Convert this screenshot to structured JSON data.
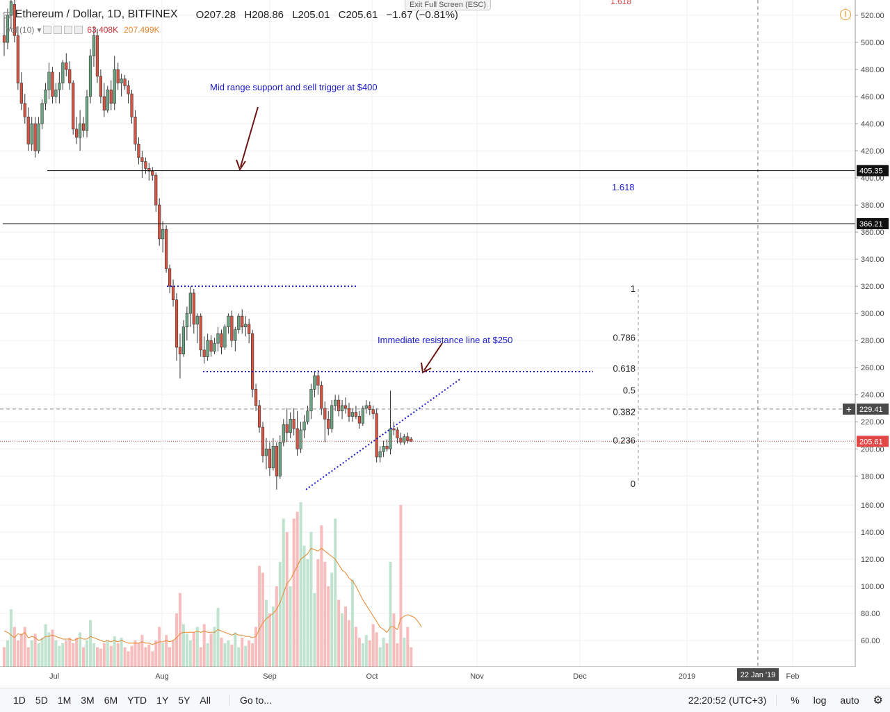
{
  "header": {
    "symbol": "Ethereum / Dollar, 1D, BITFINEX",
    "open": "O207.28",
    "high": "H208.86",
    "low": "L205.01",
    "close": "C205.61",
    "change": "−1.67 (−0.81%)",
    "exit_label": "Exit Full Screen (ESC)",
    "warning": "!"
  },
  "volume_legend": {
    "label": "Vol (10)",
    "value": "63.408K",
    "ma_value": "207.499K"
  },
  "colors": {
    "up": "#6ba583",
    "down": "#d75442",
    "up_vol": "#bfe3cf",
    "down_vol": "#f7bcbc",
    "annotation": "#1a1acc",
    "arrow": "#6b1414",
    "ma": "#e6872e",
    "last_price": "#e04848",
    "hline": "#111111"
  },
  "annotations": {
    "support_note": "Mid range support and sell trigger at $400",
    "resistance_note": "Immediate resistance line at $250",
    "fib_1618": "1.618",
    "fib_top": "1.618"
  },
  "price_badges": {
    "upper_line": "405.35",
    "middle_line": "366.21",
    "crosshair": "229.41",
    "last": "205.61"
  },
  "footer": {
    "timeframes": [
      "1D",
      "5D",
      "1M",
      "3M",
      "6M",
      "YTD",
      "1Y",
      "5Y",
      "All"
    ],
    "goto": "Go to...",
    "clock": "22:20:52 (UTC+3)",
    "percent": "%",
    "log": "log",
    "auto": "auto",
    "settings_icon": "gear-icon"
  },
  "chart_data": {
    "type": "candlestick",
    "title": "Ethereum / Dollar, 1D, BITFINEX",
    "x_ticks": [
      "Jul",
      "Aug",
      "Sep",
      "Oct",
      "Nov",
      "Dec",
      "2019",
      "22 Jan '19",
      "Feb"
    ],
    "y_ticks": [
      "520.00",
      "500.00",
      "480.00",
      "460.00",
      "440.00",
      "420.00",
      "400.00",
      "380.00",
      "360.00",
      "340.00",
      "320.00",
      "300.00",
      "280.00",
      "260.00",
      "240.00",
      "220.00",
      "200.00",
      "180.00"
    ],
    "vol_ticks": [
      "160.00",
      "140.00",
      "120.00",
      "100.00",
      "80.00",
      "60.00"
    ],
    "ylim": [
      165,
      530
    ],
    "horizontal_levels": [
      405.35,
      366.21
    ],
    "dotted_resistance_levels": [
      320,
      257
    ],
    "rising_trendline": {
      "from": [
        "Sep 11",
        170
      ],
      "to": [
        "Oct 20",
        252
      ]
    },
    "fibonacci": [
      {
        "label": "1",
        "value": 318
      },
      {
        "label": "0.786",
        "value": 282
      },
      {
        "label": "0.618",
        "value": 259
      },
      {
        "label": "0.5",
        "value": 243
      },
      {
        "label": "0.382",
        "value": 227
      },
      {
        "label": "0.236",
        "value": 206
      },
      {
        "label": "0",
        "value": 174
      }
    ],
    "candles": [
      {
        "o": 505,
        "h": 520,
        "l": 490,
        "c": 500
      },
      {
        "o": 500,
        "h": 525,
        "l": 495,
        "c": 520
      },
      {
        "o": 520,
        "h": 535,
        "l": 510,
        "c": 530
      },
      {
        "o": 528,
        "h": 532,
        "l": 500,
        "c": 505
      },
      {
        "o": 505,
        "h": 512,
        "l": 465,
        "c": 470
      },
      {
        "o": 470,
        "h": 478,
        "l": 450,
        "c": 455
      },
      {
        "o": 455,
        "h": 462,
        "l": 440,
        "c": 445
      },
      {
        "o": 445,
        "h": 452,
        "l": 420,
        "c": 425
      },
      {
        "o": 425,
        "h": 445,
        "l": 420,
        "c": 440
      },
      {
        "o": 440,
        "h": 445,
        "l": 415,
        "c": 420
      },
      {
        "o": 420,
        "h": 445,
        "l": 418,
        "c": 440
      },
      {
        "o": 440,
        "h": 458,
        "l": 436,
        "c": 455
      },
      {
        "o": 455,
        "h": 470,
        "l": 450,
        "c": 465
      },
      {
        "o": 465,
        "h": 485,
        "l": 458,
        "c": 478
      },
      {
        "o": 478,
        "h": 482,
        "l": 455,
        "c": 460
      },
      {
        "o": 460,
        "h": 470,
        "l": 455,
        "c": 465
      },
      {
        "o": 465,
        "h": 478,
        "l": 455,
        "c": 470
      },
      {
        "o": 470,
        "h": 487,
        "l": 465,
        "c": 485
      },
      {
        "o": 485,
        "h": 492,
        "l": 475,
        "c": 480
      },
      {
        "o": 480,
        "h": 486,
        "l": 465,
        "c": 470
      },
      {
        "o": 470,
        "h": 472,
        "l": 432,
        "c": 436
      },
      {
        "o": 436,
        "h": 445,
        "l": 425,
        "c": 430
      },
      {
        "o": 430,
        "h": 450,
        "l": 420,
        "c": 440
      },
      {
        "o": 440,
        "h": 445,
        "l": 430,
        "c": 435
      },
      {
        "o": 435,
        "h": 465,
        "l": 430,
        "c": 460
      },
      {
        "o": 460,
        "h": 495,
        "l": 455,
        "c": 490
      },
      {
        "o": 490,
        "h": 512,
        "l": 482,
        "c": 505
      },
      {
        "o": 505,
        "h": 510,
        "l": 470,
        "c": 475
      },
      {
        "o": 475,
        "h": 480,
        "l": 455,
        "c": 460
      },
      {
        "o": 460,
        "h": 470,
        "l": 445,
        "c": 450
      },
      {
        "o": 450,
        "h": 468,
        "l": 448,
        "c": 465
      },
      {
        "o": 465,
        "h": 472,
        "l": 450,
        "c": 455
      },
      {
        "o": 455,
        "h": 490,
        "l": 450,
        "c": 480
      },
      {
        "o": 480,
        "h": 485,
        "l": 465,
        "c": 470
      },
      {
        "o": 470,
        "h": 477,
        "l": 460,
        "c": 473
      },
      {
        "o": 473,
        "h": 476,
        "l": 465,
        "c": 468
      },
      {
        "o": 468,
        "h": 472,
        "l": 455,
        "c": 462
      },
      {
        "o": 462,
        "h": 465,
        "l": 440,
        "c": 445
      },
      {
        "o": 445,
        "h": 450,
        "l": 420,
        "c": 425
      },
      {
        "o": 425,
        "h": 430,
        "l": 410,
        "c": 415
      },
      {
        "o": 415,
        "h": 420,
        "l": 400,
        "c": 412
      },
      {
        "o": 412,
        "h": 415,
        "l": 403,
        "c": 407
      },
      {
        "o": 407,
        "h": 411,
        "l": 398,
        "c": 405
      },
      {
        "o": 405,
        "h": 408,
        "l": 398,
        "c": 402
      },
      {
        "o": 402,
        "h": 404,
        "l": 375,
        "c": 380
      },
      {
        "o": 380,
        "h": 385,
        "l": 350,
        "c": 355
      },
      {
        "o": 355,
        "h": 368,
        "l": 345,
        "c": 362
      },
      {
        "o": 362,
        "h": 365,
        "l": 330,
        "c": 333
      },
      {
        "o": 333,
        "h": 336,
        "l": 315,
        "c": 320
      },
      {
        "o": 320,
        "h": 325,
        "l": 305,
        "c": 310
      },
      {
        "o": 310,
        "h": 315,
        "l": 265,
        "c": 275
      },
      {
        "o": 275,
        "h": 285,
        "l": 252,
        "c": 270
      },
      {
        "o": 270,
        "h": 295,
        "l": 268,
        "c": 290
      },
      {
        "o": 290,
        "h": 305,
        "l": 280,
        "c": 300
      },
      {
        "o": 300,
        "h": 320,
        "l": 290,
        "c": 315
      },
      {
        "o": 315,
        "h": 318,
        "l": 285,
        "c": 292
      },
      {
        "o": 292,
        "h": 300,
        "l": 278,
        "c": 298
      },
      {
        "o": 298,
        "h": 300,
        "l": 268,
        "c": 273
      },
      {
        "o": 273,
        "h": 283,
        "l": 263,
        "c": 268
      },
      {
        "o": 268,
        "h": 285,
        "l": 265,
        "c": 280
      },
      {
        "o": 280,
        "h": 284,
        "l": 268,
        "c": 272
      },
      {
        "o": 272,
        "h": 282,
        "l": 270,
        "c": 278
      },
      {
        "o": 278,
        "h": 290,
        "l": 272,
        "c": 285
      },
      {
        "o": 285,
        "h": 288,
        "l": 270,
        "c": 275
      },
      {
        "o": 275,
        "h": 292,
        "l": 273,
        "c": 290
      },
      {
        "o": 290,
        "h": 300,
        "l": 285,
        "c": 298
      },
      {
        "o": 298,
        "h": 302,
        "l": 275,
        "c": 280
      },
      {
        "o": 280,
        "h": 290,
        "l": 272,
        "c": 288
      },
      {
        "o": 288,
        "h": 300,
        "l": 285,
        "c": 298
      },
      {
        "o": 298,
        "h": 303,
        "l": 285,
        "c": 290
      },
      {
        "o": 290,
        "h": 298,
        "l": 283,
        "c": 292
      },
      {
        "o": 292,
        "h": 296,
        "l": 278,
        "c": 285
      },
      {
        "o": 285,
        "h": 288,
        "l": 238,
        "c": 244
      },
      {
        "o": 244,
        "h": 248,
        "l": 228,
        "c": 232
      },
      {
        "o": 232,
        "h": 236,
        "l": 212,
        "c": 216
      },
      {
        "o": 216,
        "h": 220,
        "l": 190,
        "c": 195
      },
      {
        "o": 195,
        "h": 208,
        "l": 185,
        "c": 200
      },
      {
        "o": 200,
        "h": 205,
        "l": 180,
        "c": 186
      },
      {
        "o": 186,
        "h": 208,
        "l": 184,
        "c": 202
      },
      {
        "o": 202,
        "h": 205,
        "l": 170,
        "c": 180
      },
      {
        "o": 180,
        "h": 210,
        "l": 178,
        "c": 205
      },
      {
        "o": 205,
        "h": 222,
        "l": 202,
        "c": 218
      },
      {
        "o": 218,
        "h": 230,
        "l": 205,
        "c": 212
      },
      {
        "o": 212,
        "h": 227,
        "l": 208,
        "c": 222
      },
      {
        "o": 222,
        "h": 230,
        "l": 210,
        "c": 215
      },
      {
        "o": 215,
        "h": 228,
        "l": 195,
        "c": 200
      },
      {
        "o": 200,
        "h": 220,
        "l": 197,
        "c": 214
      },
      {
        "o": 214,
        "h": 225,
        "l": 208,
        "c": 220
      },
      {
        "o": 220,
        "h": 232,
        "l": 218,
        "c": 228
      },
      {
        "o": 228,
        "h": 248,
        "l": 222,
        "c": 244
      },
      {
        "o": 244,
        "h": 257,
        "l": 238,
        "c": 254
      },
      {
        "o": 254,
        "h": 258,
        "l": 240,
        "c": 247
      },
      {
        "o": 247,
        "h": 250,
        "l": 225,
        "c": 230
      },
      {
        "o": 230,
        "h": 235,
        "l": 205,
        "c": 222
      },
      {
        "o": 222,
        "h": 228,
        "l": 210,
        "c": 215
      },
      {
        "o": 215,
        "h": 236,
        "l": 212,
        "c": 232
      },
      {
        "o": 232,
        "h": 240,
        "l": 228,
        "c": 236
      },
      {
        "o": 236,
        "h": 240,
        "l": 224,
        "c": 228
      },
      {
        "o": 228,
        "h": 236,
        "l": 222,
        "c": 232
      },
      {
        "o": 232,
        "h": 238,
        "l": 226,
        "c": 230
      },
      {
        "o": 230,
        "h": 234,
        "l": 220,
        "c": 224
      },
      {
        "o": 224,
        "h": 230,
        "l": 220,
        "c": 227
      },
      {
        "o": 227,
        "h": 232,
        "l": 222,
        "c": 224
      },
      {
        "o": 224,
        "h": 228,
        "l": 215,
        "c": 219
      },
      {
        "o": 219,
        "h": 232,
        "l": 217,
        "c": 230
      },
      {
        "o": 230,
        "h": 236,
        "l": 226,
        "c": 232
      },
      {
        "o": 232,
        "h": 235,
        "l": 225,
        "c": 229
      },
      {
        "o": 229,
        "h": 232,
        "l": 222,
        "c": 226
      },
      {
        "o": 226,
        "h": 230,
        "l": 190,
        "c": 194
      },
      {
        "o": 194,
        "h": 202,
        "l": 190,
        "c": 198
      },
      {
        "o": 198,
        "h": 206,
        "l": 194,
        "c": 202
      },
      {
        "o": 202,
        "h": 207,
        "l": 198,
        "c": 200
      },
      {
        "o": 200,
        "h": 243,
        "l": 196,
        "c": 215
      },
      {
        "o": 215,
        "h": 220,
        "l": 210,
        "c": 214
      },
      {
        "o": 214,
        "h": 216,
        "l": 204,
        "c": 208
      },
      {
        "o": 208,
        "h": 212,
        "l": 203,
        "c": 205
      },
      {
        "o": 205,
        "h": 211,
        "l": 203,
        "c": 209
      },
      {
        "o": 209,
        "h": 212,
        "l": 204,
        "c": 206
      },
      {
        "o": 207.28,
        "h": 208.86,
        "l": 205.01,
        "c": 205.61
      }
    ],
    "volumes": [
      55,
      60,
      83,
      70,
      60,
      65,
      70,
      55,
      60,
      65,
      58,
      62,
      72,
      66,
      68,
      60,
      56,
      58,
      60,
      62,
      58,
      62,
      66,
      55,
      60,
      75,
      58,
      55,
      54,
      58,
      60,
      56,
      63,
      58,
      62,
      55,
      52,
      56,
      60,
      58,
      64,
      55,
      57,
      52,
      60,
      70,
      58,
      64,
      55,
      60,
      80,
      95,
      72,
      65,
      60,
      66,
      70,
      55,
      72,
      58,
      65,
      70,
      84,
      62,
      58,
      60,
      57,
      66,
      55,
      62,
      56,
      60,
      58,
      70,
      115,
      110,
      90,
      80,
      85,
      100,
      118,
      150,
      140,
      100,
      150,
      155,
      162,
      130,
      120,
      140,
      95,
      120,
      145,
      118,
      100,
      110,
      150,
      90,
      80,
      85,
      75,
      105,
      70,
      62,
      58,
      64,
      60,
      72,
      66,
      55,
      62,
      58,
      118,
      80,
      58,
      160,
      62,
      70,
      55,
      52,
      50,
      48
    ],
    "volume_ma": [
      67,
      66,
      64,
      62,
      65,
      64,
      66,
      62,
      63,
      62,
      60,
      61,
      63,
      63,
      64,
      63,
      62,
      61,
      61,
      61,
      60,
      61,
      62,
      61,
      61,
      63,
      62,
      61,
      60,
      59,
      60,
      59,
      60,
      59,
      60,
      59,
      58,
      58,
      58,
      58,
      59,
      58,
      58,
      57,
      58,
      59,
      59,
      60,
      59,
      60,
      62,
      65,
      66,
      66,
      66,
      66,
      67,
      66,
      67,
      66,
      66,
      66,
      68,
      67,
      66,
      65,
      64,
      65,
      64,
      64,
      63,
      63,
      62,
      63,
      68,
      73,
      76,
      78,
      80,
      83,
      88,
      95,
      102,
      105,
      110,
      115,
      120,
      122,
      124,
      128,
      127,
      126,
      128,
      126,
      124,
      122,
      120,
      116,
      112,
      110,
      106,
      104,
      100,
      95,
      90,
      86,
      82,
      78,
      74,
      70,
      68,
      66,
      70,
      70,
      68,
      76,
      78,
      79,
      78,
      77,
      74,
      70
    ]
  }
}
